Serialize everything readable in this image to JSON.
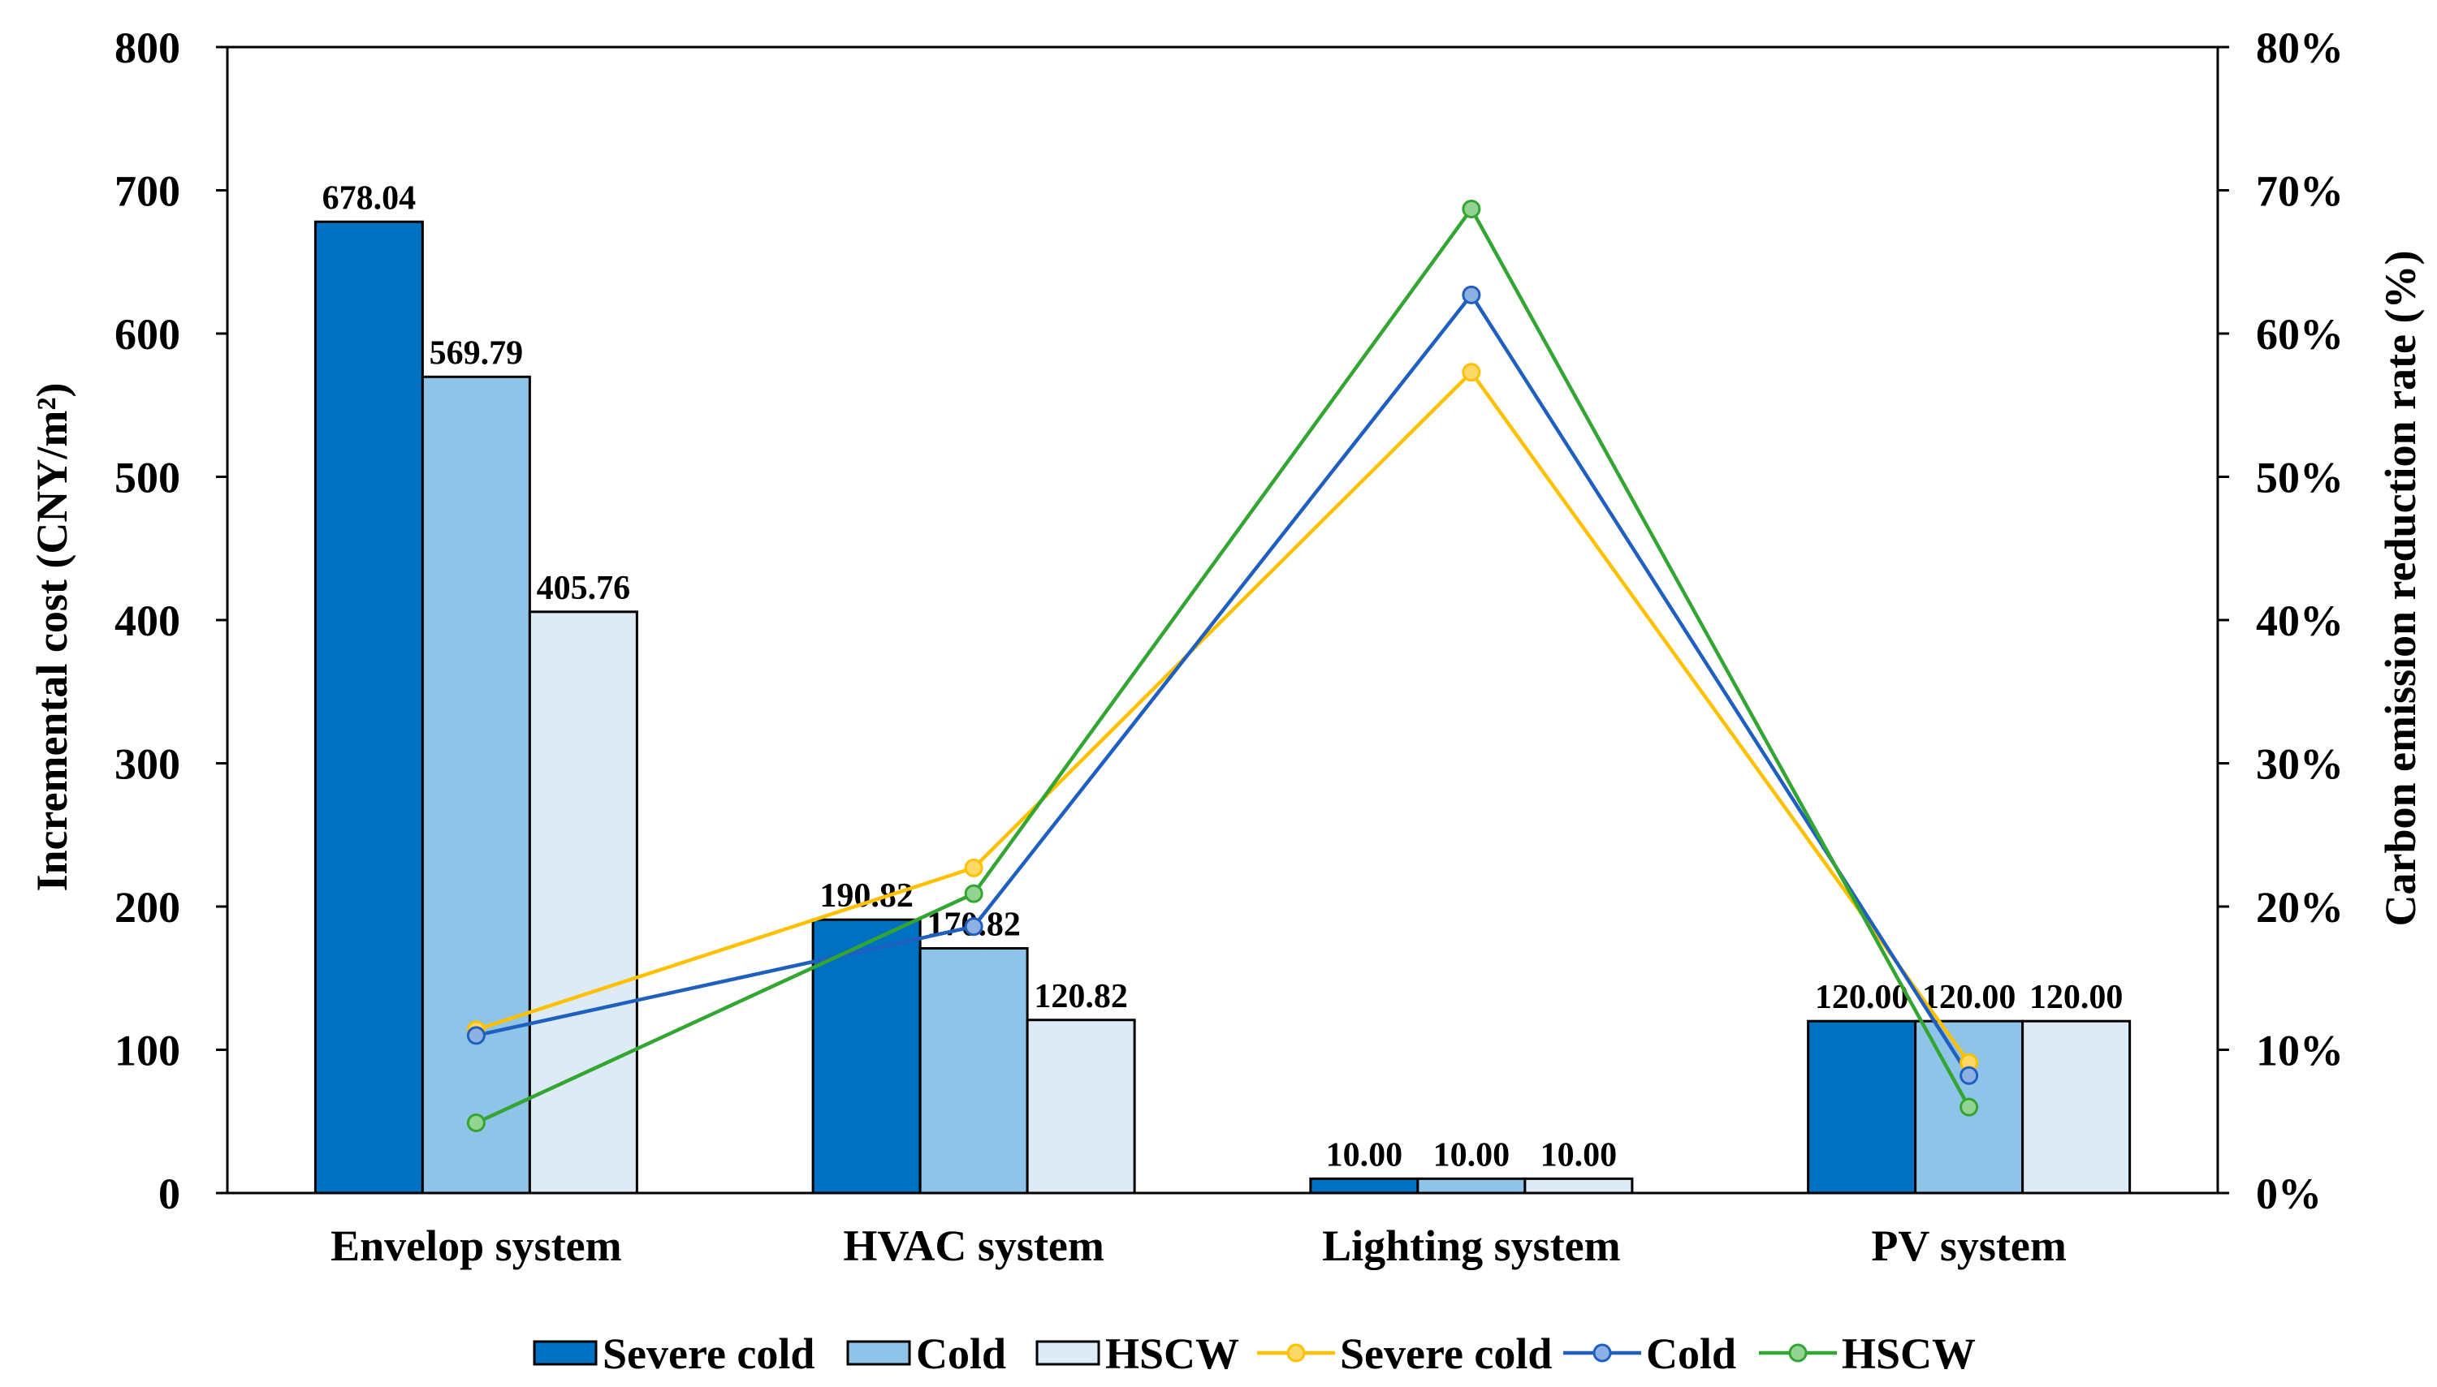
{
  "chart_data": {
    "type": "bar",
    "categories": [
      "Envelop system",
      "HVAC system",
      "Lighting system",
      "PV system"
    ],
    "ylabel": "Incremental cost (CNY/m²)",
    "ylim": [
      0,
      800
    ],
    "yticks": [
      "0",
      "100",
      "200",
      "300",
      "400",
      "500",
      "600",
      "700",
      "800"
    ],
    "y2label": "Carbon emission reduction rate (%)",
    "y2lim": [
      0,
      80
    ],
    "y2ticks": [
      "0%",
      "10%",
      "20%",
      "30%",
      "40%",
      "50%",
      "60%",
      "70%",
      "80%"
    ],
    "grid": false,
    "legend_position": "bottom",
    "series": [
      {
        "name": "Severe cold",
        "type": "bar",
        "axis": "left",
        "values": [
          678.04,
          190.82,
          10.0,
          120.0
        ],
        "labels": [
          "678.04",
          "190.82",
          "10.00",
          "120.00"
        ],
        "color": "#0070C0"
      },
      {
        "name": "Cold",
        "type": "bar",
        "axis": "left",
        "values": [
          569.79,
          170.82,
          10.0,
          120.0
        ],
        "labels": [
          "569.79",
          "170.82",
          "10.00",
          "120.00"
        ],
        "color": "#8FC4E9"
      },
      {
        "name": "HSCW",
        "type": "bar",
        "axis": "left",
        "values": [
          405.76,
          120.82,
          10.0,
          120.0
        ],
        "labels": [
          "405.76",
          "120.82",
          "10.00",
          "120.00"
        ],
        "color": "#DDEBF7"
      },
      {
        "name": "Severe cold",
        "type": "line",
        "axis": "right",
        "values": [
          11.4,
          22.7,
          57.3,
          9.1
        ],
        "color": "#FFC000",
        "marker_fill": "#FFD966"
      },
      {
        "name": "Cold",
        "type": "line",
        "axis": "right",
        "values": [
          11.0,
          18.6,
          62.7,
          8.2
        ],
        "color": "#1F5FBF",
        "marker_fill": "#8EB1E3"
      },
      {
        "name": "HSCW",
        "type": "line",
        "axis": "right",
        "values": [
          4.9,
          20.9,
          68.7,
          6.0
        ],
        "color": "#33A532",
        "marker_fill": "#93D493"
      }
    ]
  }
}
